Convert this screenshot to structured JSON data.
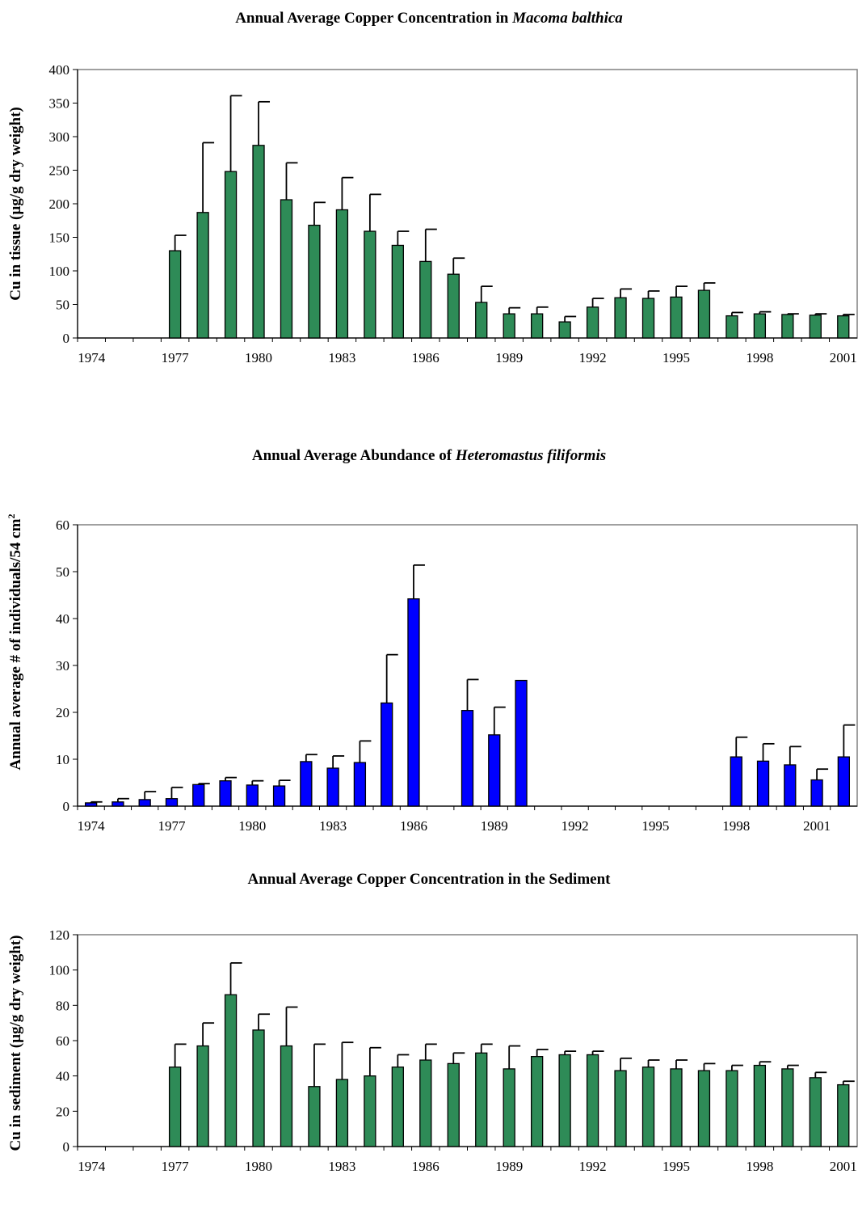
{
  "chart_data": [
    {
      "type": "bar",
      "title": "Annual Average Copper Concentration in ",
      "title_species": "Macoma balthica",
      "ylabel": "Cu in tissue (µg/g dry weight)",
      "ylabel_sup": "",
      "ylim": [
        0,
        400
      ],
      "yticks": [
        "0",
        "50",
        "100",
        "150",
        "200",
        "250",
        "300",
        "350",
        "400"
      ],
      "xlim": [
        1973.5,
        2001.5
      ],
      "xticks": [
        "1974",
        "1977",
        "1980",
        "1983",
        "1986",
        "1989",
        "1992",
        "1995",
        "1998",
        "2001"
      ],
      "bar_color": "#2e8b57",
      "x": [
        1977,
        1978,
        1979,
        1980,
        1981,
        1982,
        1983,
        1984,
        1985,
        1986,
        1987,
        1988,
        1989,
        1990,
        1991,
        1992,
        1993,
        1994,
        1995,
        1996,
        1997,
        1998,
        1999,
        2000,
        2001
      ],
      "values": [
        130,
        187,
        248,
        287,
        206,
        168,
        191,
        159,
        138,
        114,
        95,
        53,
        36,
        36,
        24,
        46,
        60,
        59,
        61,
        71,
        33,
        36,
        35,
        34,
        33
      ],
      "errors": [
        23,
        104,
        113,
        65,
        55,
        34,
        48,
        55,
        21,
        48,
        24,
        24,
        9,
        10,
        8,
        13,
        13,
        11,
        16,
        11,
        5,
        3,
        1,
        2,
        2
      ]
    },
    {
      "type": "bar",
      "title": "Annual Average Abundance of ",
      "title_species": "Heteromastus filiformis",
      "ylabel": "Annual average # of individuals/54 cm",
      "ylabel_sup": "2",
      "ylim": [
        0,
        60
      ],
      "yticks": [
        "0",
        "10",
        "20",
        "30",
        "40",
        "50",
        "60"
      ],
      "xlim": [
        1973.5,
        2002.5
      ],
      "xticks": [
        "1974",
        "1977",
        "1980",
        "1983",
        "1986",
        "1989",
        "1992",
        "1995",
        "1998",
        "2001"
      ],
      "bar_color": "#0000ff",
      "x": [
        1974,
        1975,
        1976,
        1977,
        1978,
        1979,
        1980,
        1981,
        1982,
        1983,
        1984,
        1985,
        1986,
        1988,
        1989,
        1990,
        1998,
        1999,
        2000,
        2001,
        2002
      ],
      "values": [
        0.7,
        0.9,
        1.4,
        1.6,
        4.6,
        5.4,
        4.5,
        4.3,
        9.5,
        8.1,
        9.3,
        22,
        44.2,
        20.4,
        15.2,
        26.8,
        10.5,
        9.6,
        8.8,
        5.6,
        10.5
      ],
      "errors": [
        0.2,
        0.7,
        1.7,
        2.4,
        0.2,
        0.7,
        0.9,
        1.2,
        1.5,
        2.6,
        4.6,
        10.3,
        7.2,
        6.6,
        5.9,
        0,
        4.2,
        3.7,
        3.9,
        2.3,
        6.8
      ]
    },
    {
      "type": "bar",
      "title": "Annual Average Copper Concentration in the Sediment",
      "title_species": "",
      "ylabel": "Cu in sediment (µg/g dry weight)",
      "ylabel_sup": "",
      "ylim": [
        0,
        120
      ],
      "yticks": [
        "0",
        "20",
        "40",
        "60",
        "80",
        "100",
        "120"
      ],
      "xlim": [
        1973.5,
        2001.5
      ],
      "xticks": [
        "1974",
        "1977",
        "1980",
        "1983",
        "1986",
        "1989",
        "1992",
        "1995",
        "1998",
        "2001"
      ],
      "bar_color": "#2e8b57",
      "x": [
        1977,
        1978,
        1979,
        1980,
        1981,
        1982,
        1983,
        1984,
        1985,
        1986,
        1987,
        1988,
        1989,
        1990,
        1991,
        1992,
        1993,
        1994,
        1995,
        1996,
        1997,
        1998,
        1999,
        2000,
        2001
      ],
      "values": [
        45,
        57,
        86,
        66,
        57,
        34,
        38,
        40,
        45,
        49,
        47,
        53,
        44,
        51,
        52,
        52,
        43,
        45,
        44,
        43,
        43,
        46,
        44,
        39,
        35
      ],
      "errors": [
        13,
        13,
        18,
        9,
        22,
        24,
        21,
        16,
        7,
        9,
        6,
        5,
        13,
        4,
        2,
        2,
        7,
        4,
        5,
        4,
        3,
        2,
        2,
        3,
        2
      ]
    }
  ]
}
